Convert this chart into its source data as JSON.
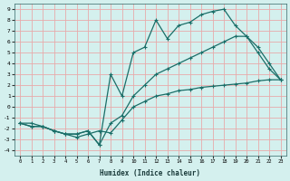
{
  "xlabel": "Humidex (Indice chaleur)",
  "bg_color": "#d4f0ee",
  "grid_color": "#e8aaaa",
  "line_color": "#1a6e68",
  "xlim": [
    -0.5,
    23.5
  ],
  "ylim": [
    -4.5,
    9.5
  ],
  "xticks": [
    0,
    1,
    2,
    3,
    4,
    5,
    6,
    7,
    8,
    9,
    10,
    11,
    12,
    13,
    14,
    15,
    16,
    17,
    18,
    19,
    20,
    21,
    22,
    23
  ],
  "yticks": [
    -4,
    -3,
    -2,
    -1,
    0,
    1,
    2,
    3,
    4,
    5,
    6,
    7,
    8,
    9
  ],
  "line1_x": [
    0,
    1,
    2,
    3,
    4,
    5,
    6,
    7,
    8,
    9,
    10,
    11,
    12,
    13,
    14,
    15,
    16,
    17,
    18,
    19,
    20,
    21,
    22,
    23
  ],
  "line1_y": [
    -1.5,
    -1.8,
    -1.8,
    -2.2,
    -2.5,
    -2.5,
    -2.2,
    -3.5,
    3.0,
    1.0,
    5.0,
    5.5,
    8.0,
    6.3,
    7.5,
    7.8,
    8.5,
    8.8,
    9.0,
    7.5,
    6.5,
    5.0,
    3.5,
    2.5
  ],
  "line2_x": [
    0,
    1,
    2,
    3,
    4,
    5,
    6,
    7,
    8,
    9,
    10,
    11,
    12,
    13,
    14,
    15,
    16,
    17,
    18,
    19,
    20,
    21,
    22,
    23
  ],
  "line2_y": [
    -1.5,
    -1.8,
    -1.8,
    -2.2,
    -2.5,
    -2.8,
    -2.5,
    -2.2,
    -2.4,
    -1.2,
    0.0,
    0.5,
    1.0,
    1.2,
    1.5,
    1.6,
    1.8,
    1.9,
    2.0,
    2.1,
    2.2,
    2.4,
    2.5,
    2.5
  ],
  "line3_x": [
    0,
    1,
    2,
    3,
    4,
    5,
    6,
    7,
    8,
    9,
    10,
    11,
    12,
    13,
    14,
    15,
    16,
    17,
    18,
    19,
    20,
    21,
    22,
    23
  ],
  "line3_y": [
    -1.5,
    -1.5,
    -1.8,
    -2.2,
    -2.5,
    -2.5,
    -2.2,
    -3.5,
    -1.5,
    -0.8,
    1.0,
    2.0,
    3.0,
    3.5,
    4.0,
    4.5,
    5.0,
    5.5,
    6.0,
    6.5,
    6.5,
    5.5,
    4.0,
    2.5
  ]
}
